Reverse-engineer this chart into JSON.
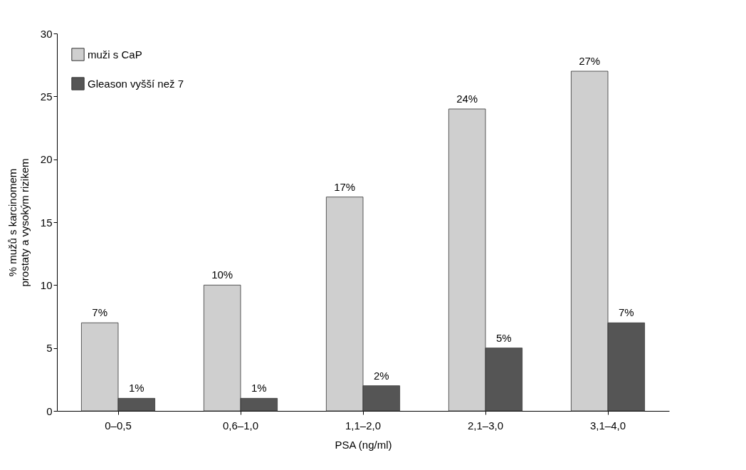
{
  "chart_data": {
    "type": "bar",
    "xlabel": "PSA (ng/ml)",
    "ylabel": "% mužů s karcinomem\nprostaty a vysokým rizikem",
    "categories": [
      "0–0,5",
      "0,6–1,0",
      "1,1–2,0",
      "2,1–3,0",
      "3,1–4,0"
    ],
    "series": [
      {
        "name": "muži s CaP",
        "color": "#cfcfcf",
        "values": [
          7,
          10,
          17,
          24,
          27
        ],
        "value_labels": [
          "7%",
          "10%",
          "17%",
          "24%",
          "27%"
        ]
      },
      {
        "name": "Gleason vyšší než 7",
        "color": "#555555",
        "values": [
          1,
          1,
          2,
          5,
          7
        ],
        "value_labels": [
          "1%",
          "1%",
          "2%",
          "5%",
          "7%"
        ]
      }
    ],
    "ylim": [
      0,
      30
    ],
    "yticks": [
      0,
      5,
      10,
      15,
      20,
      25,
      30
    ],
    "grid": false,
    "legend": "top left"
  }
}
